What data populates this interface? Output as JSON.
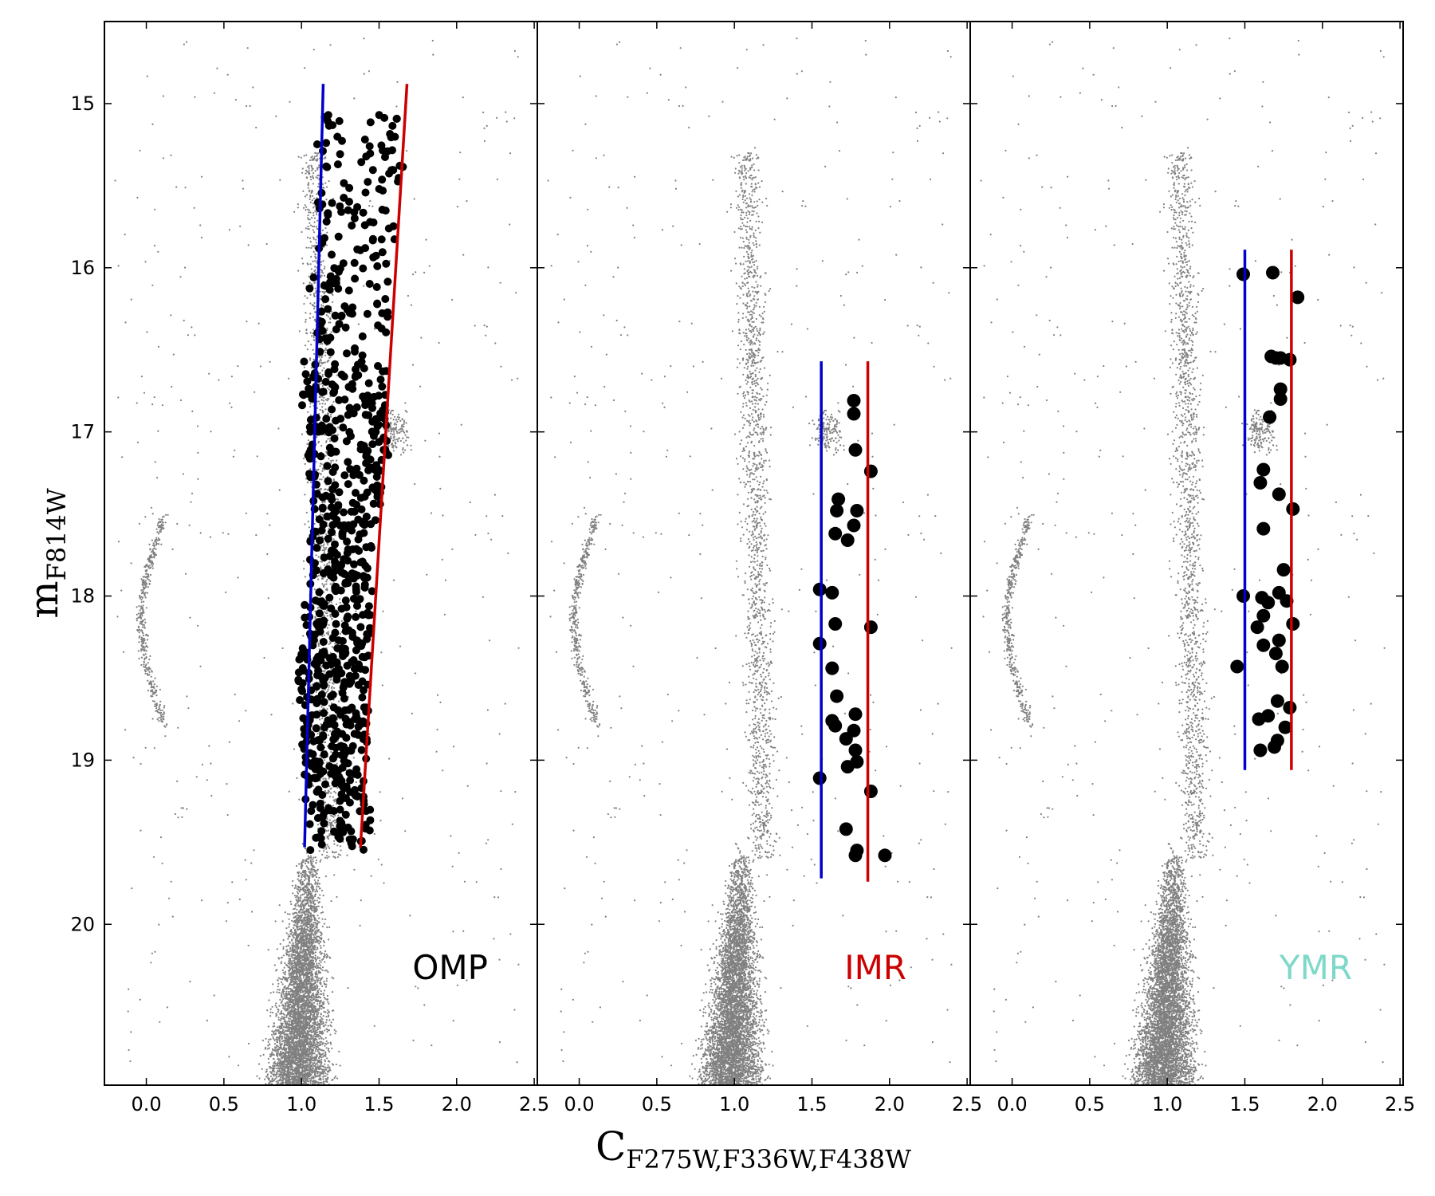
{
  "chart_data": {
    "type": "scatter",
    "xlabel": "C",
    "xlabel_sub": "F275W,F336W,F438W",
    "ylabel": "m",
    "ylabel_sub": "F814W",
    "xlim": [
      -0.27,
      2.52
    ],
    "ylim": [
      20.98,
      14.5
    ],
    "y_inverted": true,
    "xticks": [
      0.0,
      0.5,
      1.0,
      1.5,
      2.0,
      2.5
    ],
    "xtick_labels": [
      "0.0",
      "0.5",
      "1.0",
      "1.5",
      "2.0",
      "2.5"
    ],
    "yticks": [
      15,
      16,
      17,
      18,
      19,
      20
    ],
    "ytick_labels": [
      "15",
      "16",
      "17",
      "18",
      "19",
      "20"
    ],
    "grid": false,
    "background_color": "#808080",
    "marker_color": "#000000",
    "panels": [
      {
        "label": "OMP",
        "label_color": "#000000",
        "lines": [
          {
            "color": "#0000cc",
            "points": [
              [
                1.14,
                14.88
              ],
              [
                1.02,
                19.53
              ]
            ]
          },
          {
            "color": "#cc0000",
            "points": [
              [
                1.68,
                14.88
              ],
              [
                1.38,
                19.53
              ]
            ]
          }
        ],
        "bins": [
          {
            "y": 15.2,
            "x_min": 1.1,
            "x_max": 1.62,
            "n": 30
          },
          {
            "y": 15.5,
            "x_min": 1.1,
            "x_max": 1.66,
            "n": 30
          },
          {
            "y": 15.8,
            "x_min": 1.1,
            "x_max": 1.6,
            "n": 30
          },
          {
            "y": 16.1,
            "x_min": 1.05,
            "x_max": 1.58,
            "n": 30
          },
          {
            "y": 16.4,
            "x_min": 1.08,
            "x_max": 1.56,
            "n": 35
          },
          {
            "y": 16.7,
            "x_min": 1.0,
            "x_max": 1.55,
            "n": 60
          },
          {
            "y": 17.0,
            "x_min": 1.02,
            "x_max": 1.56,
            "n": 70
          },
          {
            "y": 17.3,
            "x_min": 1.05,
            "x_max": 1.52,
            "n": 60
          },
          {
            "y": 17.6,
            "x_min": 1.05,
            "x_max": 1.48,
            "n": 60
          },
          {
            "y": 17.9,
            "x_min": 1.05,
            "x_max": 1.46,
            "n": 60
          },
          {
            "y": 18.2,
            "x_min": 1.0,
            "x_max": 1.45,
            "n": 70
          },
          {
            "y": 18.5,
            "x_min": 0.98,
            "x_max": 1.44,
            "n": 80
          },
          {
            "y": 18.8,
            "x_min": 1.0,
            "x_max": 1.43,
            "n": 80
          },
          {
            "y": 19.1,
            "x_min": 1.02,
            "x_max": 1.42,
            "n": 70
          },
          {
            "y": 19.4,
            "x_min": 1.05,
            "x_max": 1.45,
            "n": 50
          }
        ]
      },
      {
        "label": "IMR",
        "label_color": "#cc0000",
        "lines": [
          {
            "color": "#0000cc",
            "points": [
              [
                1.56,
                16.57
              ],
              [
                1.56,
                19.72
              ]
            ]
          },
          {
            "color": "#cc0000",
            "points": [
              [
                1.86,
                16.57
              ],
              [
                1.86,
                19.74
              ]
            ]
          }
        ],
        "points": [
          [
            1.77,
            16.81
          ],
          [
            1.77,
            16.89
          ],
          [
            1.78,
            17.11
          ],
          [
            1.88,
            17.24
          ],
          [
            1.67,
            17.41
          ],
          [
            1.66,
            17.48
          ],
          [
            1.79,
            17.48
          ],
          [
            1.77,
            17.57
          ],
          [
            1.65,
            17.62
          ],
          [
            1.73,
            17.66
          ],
          [
            1.55,
            17.96
          ],
          [
            1.63,
            17.98
          ],
          [
            1.65,
            18.17
          ],
          [
            1.88,
            18.19
          ],
          [
            1.55,
            18.29
          ],
          [
            1.63,
            18.44
          ],
          [
            1.66,
            18.61
          ],
          [
            1.78,
            18.72
          ],
          [
            1.63,
            18.76
          ],
          [
            1.65,
            18.79
          ],
          [
            1.77,
            18.82
          ],
          [
            1.72,
            18.87
          ],
          [
            1.78,
            18.94
          ],
          [
            1.79,
            19.01
          ],
          [
            1.73,
            19.04
          ],
          [
            1.55,
            19.11
          ],
          [
            1.88,
            19.19
          ],
          [
            1.72,
            19.42
          ],
          [
            1.79,
            19.55
          ],
          [
            1.78,
            19.58
          ],
          [
            1.97,
            19.58
          ]
        ]
      },
      {
        "label": "YMR",
        "label_color": "#7fd8c8",
        "lines": [
          {
            "color": "#0000cc",
            "points": [
              [
                1.5,
                15.89
              ],
              [
                1.5,
                19.06
              ]
            ]
          },
          {
            "color": "#cc0000",
            "points": [
              [
                1.8,
                15.89
              ],
              [
                1.8,
                19.06
              ]
            ]
          }
        ],
        "points": [
          [
            1.49,
            16.04
          ],
          [
            1.68,
            16.03
          ],
          [
            1.84,
            16.18
          ],
          [
            1.67,
            16.54
          ],
          [
            1.7,
            16.55
          ],
          [
            1.73,
            16.55
          ],
          [
            1.79,
            16.56
          ],
          [
            1.73,
            16.74
          ],
          [
            1.73,
            16.8
          ],
          [
            1.66,
            16.91
          ],
          [
            1.62,
            17.23
          ],
          [
            1.6,
            17.31
          ],
          [
            1.72,
            17.38
          ],
          [
            1.81,
            17.47
          ],
          [
            1.62,
            17.59
          ],
          [
            1.75,
            17.84
          ],
          [
            1.49,
            18.0
          ],
          [
            1.61,
            18.01
          ],
          [
            1.72,
            17.98
          ],
          [
            1.65,
            18.04
          ],
          [
            1.77,
            18.03
          ],
          [
            1.62,
            18.12
          ],
          [
            1.58,
            18.19
          ],
          [
            1.81,
            18.17
          ],
          [
            1.72,
            18.27
          ],
          [
            1.62,
            18.3
          ],
          [
            1.7,
            18.35
          ],
          [
            1.45,
            18.43
          ],
          [
            1.74,
            18.43
          ],
          [
            1.71,
            18.64
          ],
          [
            1.79,
            18.68
          ],
          [
            1.65,
            18.73
          ],
          [
            1.59,
            18.75
          ],
          [
            1.76,
            18.8
          ],
          [
            1.71,
            18.88
          ],
          [
            1.69,
            18.92
          ],
          [
            1.6,
            18.94
          ]
        ]
      }
    ]
  }
}
